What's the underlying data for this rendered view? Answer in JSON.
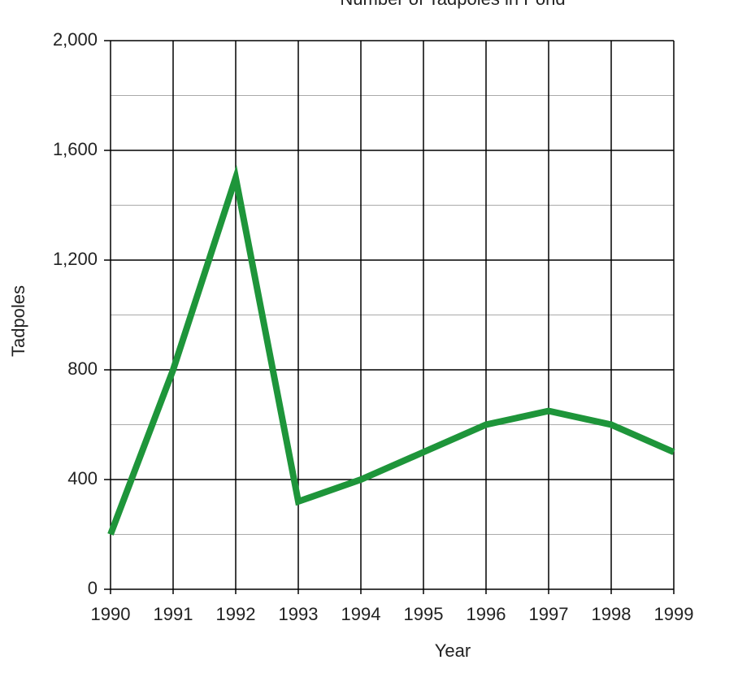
{
  "chart_data": {
    "type": "line",
    "title": "Number of Tadpoles in Pond",
    "x_label": "Year",
    "y_label": "Tadpoles",
    "categories": [
      "1990",
      "1991",
      "1992",
      "1993",
      "1994",
      "1995",
      "1996",
      "1997",
      "1998",
      "1999"
    ],
    "values": [
      200,
      800,
      1500,
      320,
      400,
      500,
      600,
      650,
      600,
      500
    ],
    "color": "#1e953a",
    "ylim": [
      0,
      2000
    ],
    "yticks": [
      0,
      400,
      800,
      {
        "value": 1200,
        "label": "1,200"
      },
      {
        "value": 1600,
        "label": "1,600"
      },
      {
        "value": 2000,
        "label": "2,000"
      }
    ],
    "minor_yticks": [
      200,
      600,
      1000,
      1400,
      1800
    ],
    "grid": true
  }
}
